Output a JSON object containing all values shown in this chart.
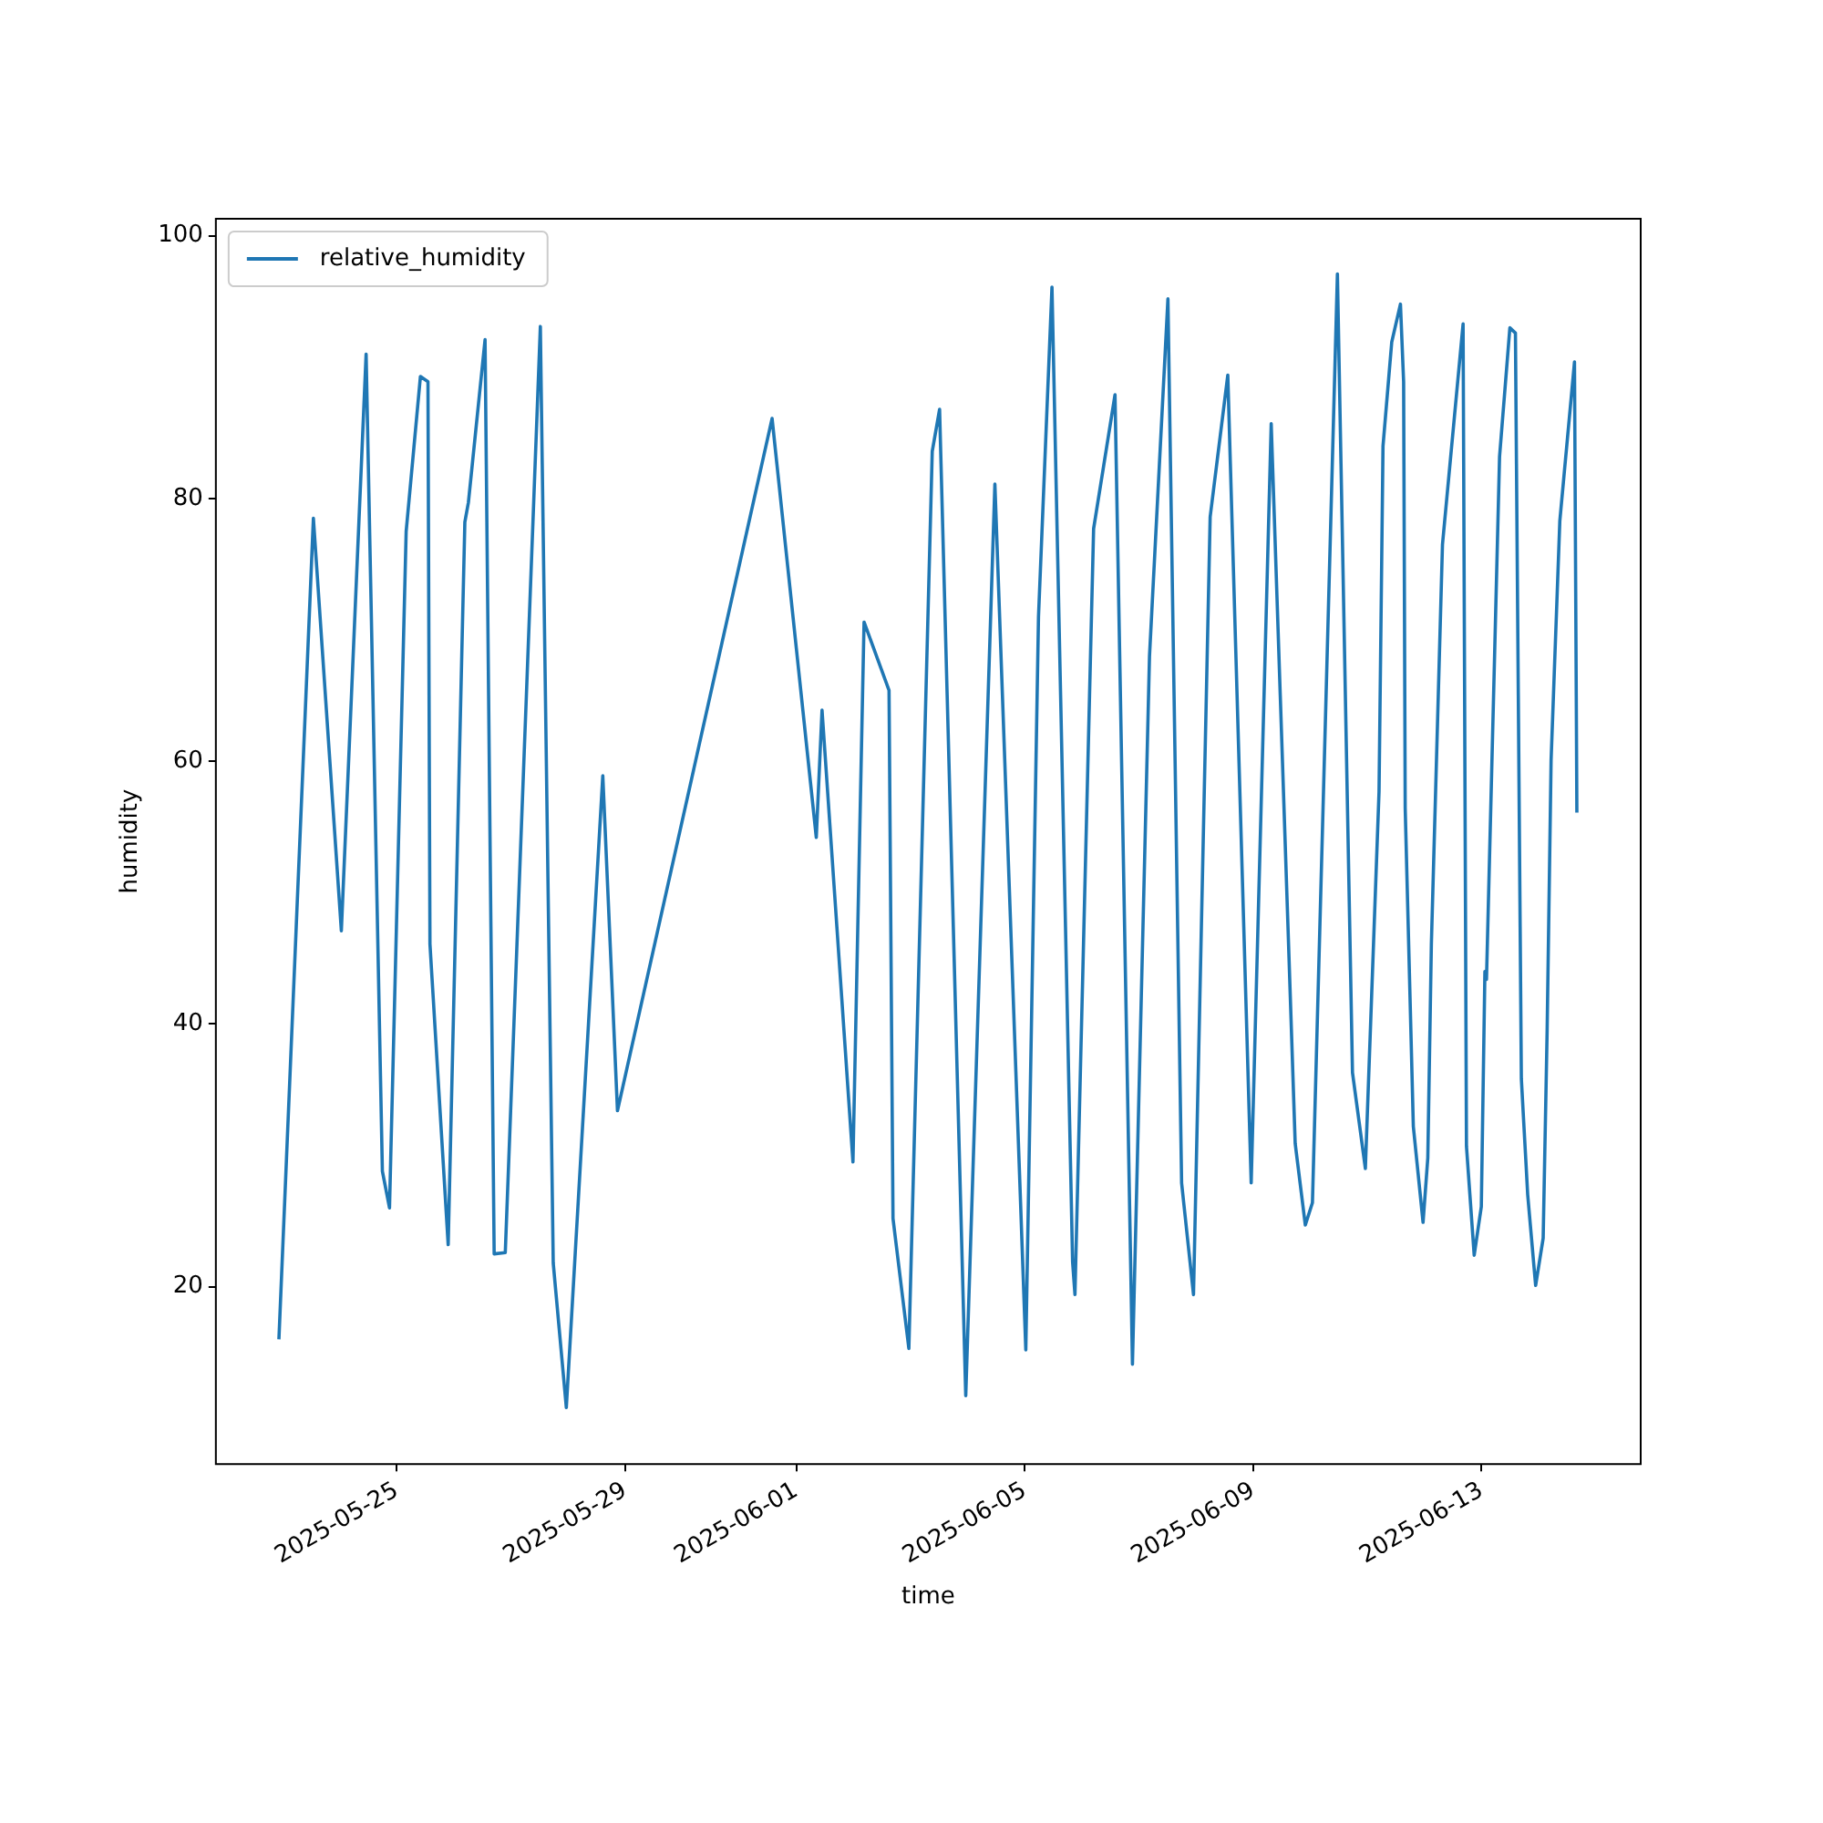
{
  "chart_data": {
    "type": "line",
    "xlabel": "time",
    "ylabel": "humidity",
    "legend": "top left",
    "grid": false,
    "marker": "none",
    "line_style": "solid",
    "xlim": [
      "2025-05-21T20:00",
      "2025-06-15T19:00"
    ],
    "ylim": [
      6.5,
      101.3
    ],
    "xticks": [
      "2025-05-25",
      "2025-05-29",
      "2025-06-01",
      "2025-06-05",
      "2025-06-09",
      "2025-06-13"
    ],
    "yticks": [
      20,
      40,
      60,
      80,
      100
    ],
    "x": [
      "2025-05-22T22:30",
      "2025-05-23T13:00",
      "2025-05-24T00:45",
      "2025-05-24T11:10",
      "2025-05-24T18:00",
      "2025-05-24T21:00",
      "2025-05-25T04:00",
      "2025-05-25T10:00",
      "2025-05-25T13:10",
      "2025-05-25T14:00",
      "2025-05-25T21:40",
      "2025-05-26T04:40",
      "2025-05-26T06:10",
      "2025-05-26T13:10",
      "2025-05-26T17:00",
      "2025-05-26T21:40",
      "2025-05-27T12:25",
      "2025-05-27T17:50",
      "2025-05-27T23:20",
      "2025-05-28T14:40",
      "2025-05-28T20:50",
      "2025-05-31T13:50",
      "2025-06-01T08:25",
      "2025-06-01T10:50",
      "2025-06-01T23:50",
      "2025-06-02T04:30",
      "2025-06-02T15:00",
      "2025-06-02T16:40",
      "2025-06-02T23:20",
      "2025-06-03T09:10",
      "2025-06-03T12:15",
      "2025-06-03T23:15",
      "2025-06-04T11:30",
      "2025-06-05T00:30",
      "2025-06-05T05:50",
      "2025-06-05T11:30",
      "2025-06-05T20:10",
      "2025-06-05T21:10",
      "2025-06-06T05:00",
      "2025-06-06T14:00",
      "2025-06-06T21:20",
      "2025-06-07T04:30",
      "2025-06-07T12:15",
      "2025-06-07T18:00",
      "2025-06-07T23:00",
      "2025-06-08T06:00",
      "2025-06-08T13:25",
      "2025-06-08T23:15",
      "2025-06-09T07:40",
      "2025-06-09T17:45",
      "2025-06-09T22:00",
      "2025-06-10T01:00",
      "2025-06-10T11:30",
      "2025-06-10T17:50",
      "2025-06-10T23:15",
      "2025-06-11T05:00",
      "2025-06-11T06:40",
      "2025-06-11T10:20",
      "2025-06-11T14:00",
      "2025-06-11T15:20",
      "2025-06-11T16:00",
      "2025-06-11T19:25",
      "2025-06-11T23:30",
      "2025-06-12T01:30",
      "2025-06-12T03:00",
      "2025-06-12T07:40",
      "2025-06-12T16:20",
      "2025-06-12T17:45",
      "2025-06-12T21:00",
      "2025-06-13T00:00",
      "2025-06-13T01:30",
      "2025-06-13T02:10",
      "2025-06-13T07:40",
      "2025-06-13T12:00",
      "2025-06-13T14:20",
      "2025-06-13T16:50",
      "2025-06-13T19:30",
      "2025-06-13T22:50",
      "2025-06-14T02:00",
      "2025-06-14T03:40",
      "2025-06-14T05:20",
      "2025-06-14T09:00",
      "2025-06-14T15:10",
      "2025-06-14T16:10"
    ],
    "series": [
      {
        "name": "relative_humidity",
        "color": "#1f77b4",
        "values": [
          16.0,
          78.5,
          47.1,
          91.0,
          28.8,
          26.0,
          77.5,
          89.3,
          88.9,
          46.1,
          23.2,
          78.2,
          79.7,
          92.1,
          22.5,
          22.6,
          93.1,
          21.8,
          10.8,
          58.9,
          33.4,
          86.1,
          54.2,
          63.9,
          29.5,
          70.6,
          65.4,
          25.2,
          15.3,
          83.6,
          86.8,
          11.7,
          81.1,
          15.2,
          71.0,
          96.1,
          21.9,
          19.4,
          77.7,
          87.9,
          14.1,
          68.0,
          95.2,
          27.9,
          19.4,
          78.6,
          89.4,
          27.9,
          85.7,
          30.9,
          24.7,
          26.4,
          97.1,
          36.3,
          29.0,
          57.7,
          84.0,
          91.9,
          94.8,
          88.9,
          56.4,
          32.2,
          24.9,
          29.8,
          46.1,
          76.5,
          93.3,
          30.7,
          22.4,
          26.1,
          44.0,
          43.4,
          83.2,
          93.0,
          92.6,
          35.8,
          27.0,
          20.1,
          23.7,
          39.5,
          60.1,
          78.3,
          90.4,
          56.1
        ]
      }
    ]
  }
}
